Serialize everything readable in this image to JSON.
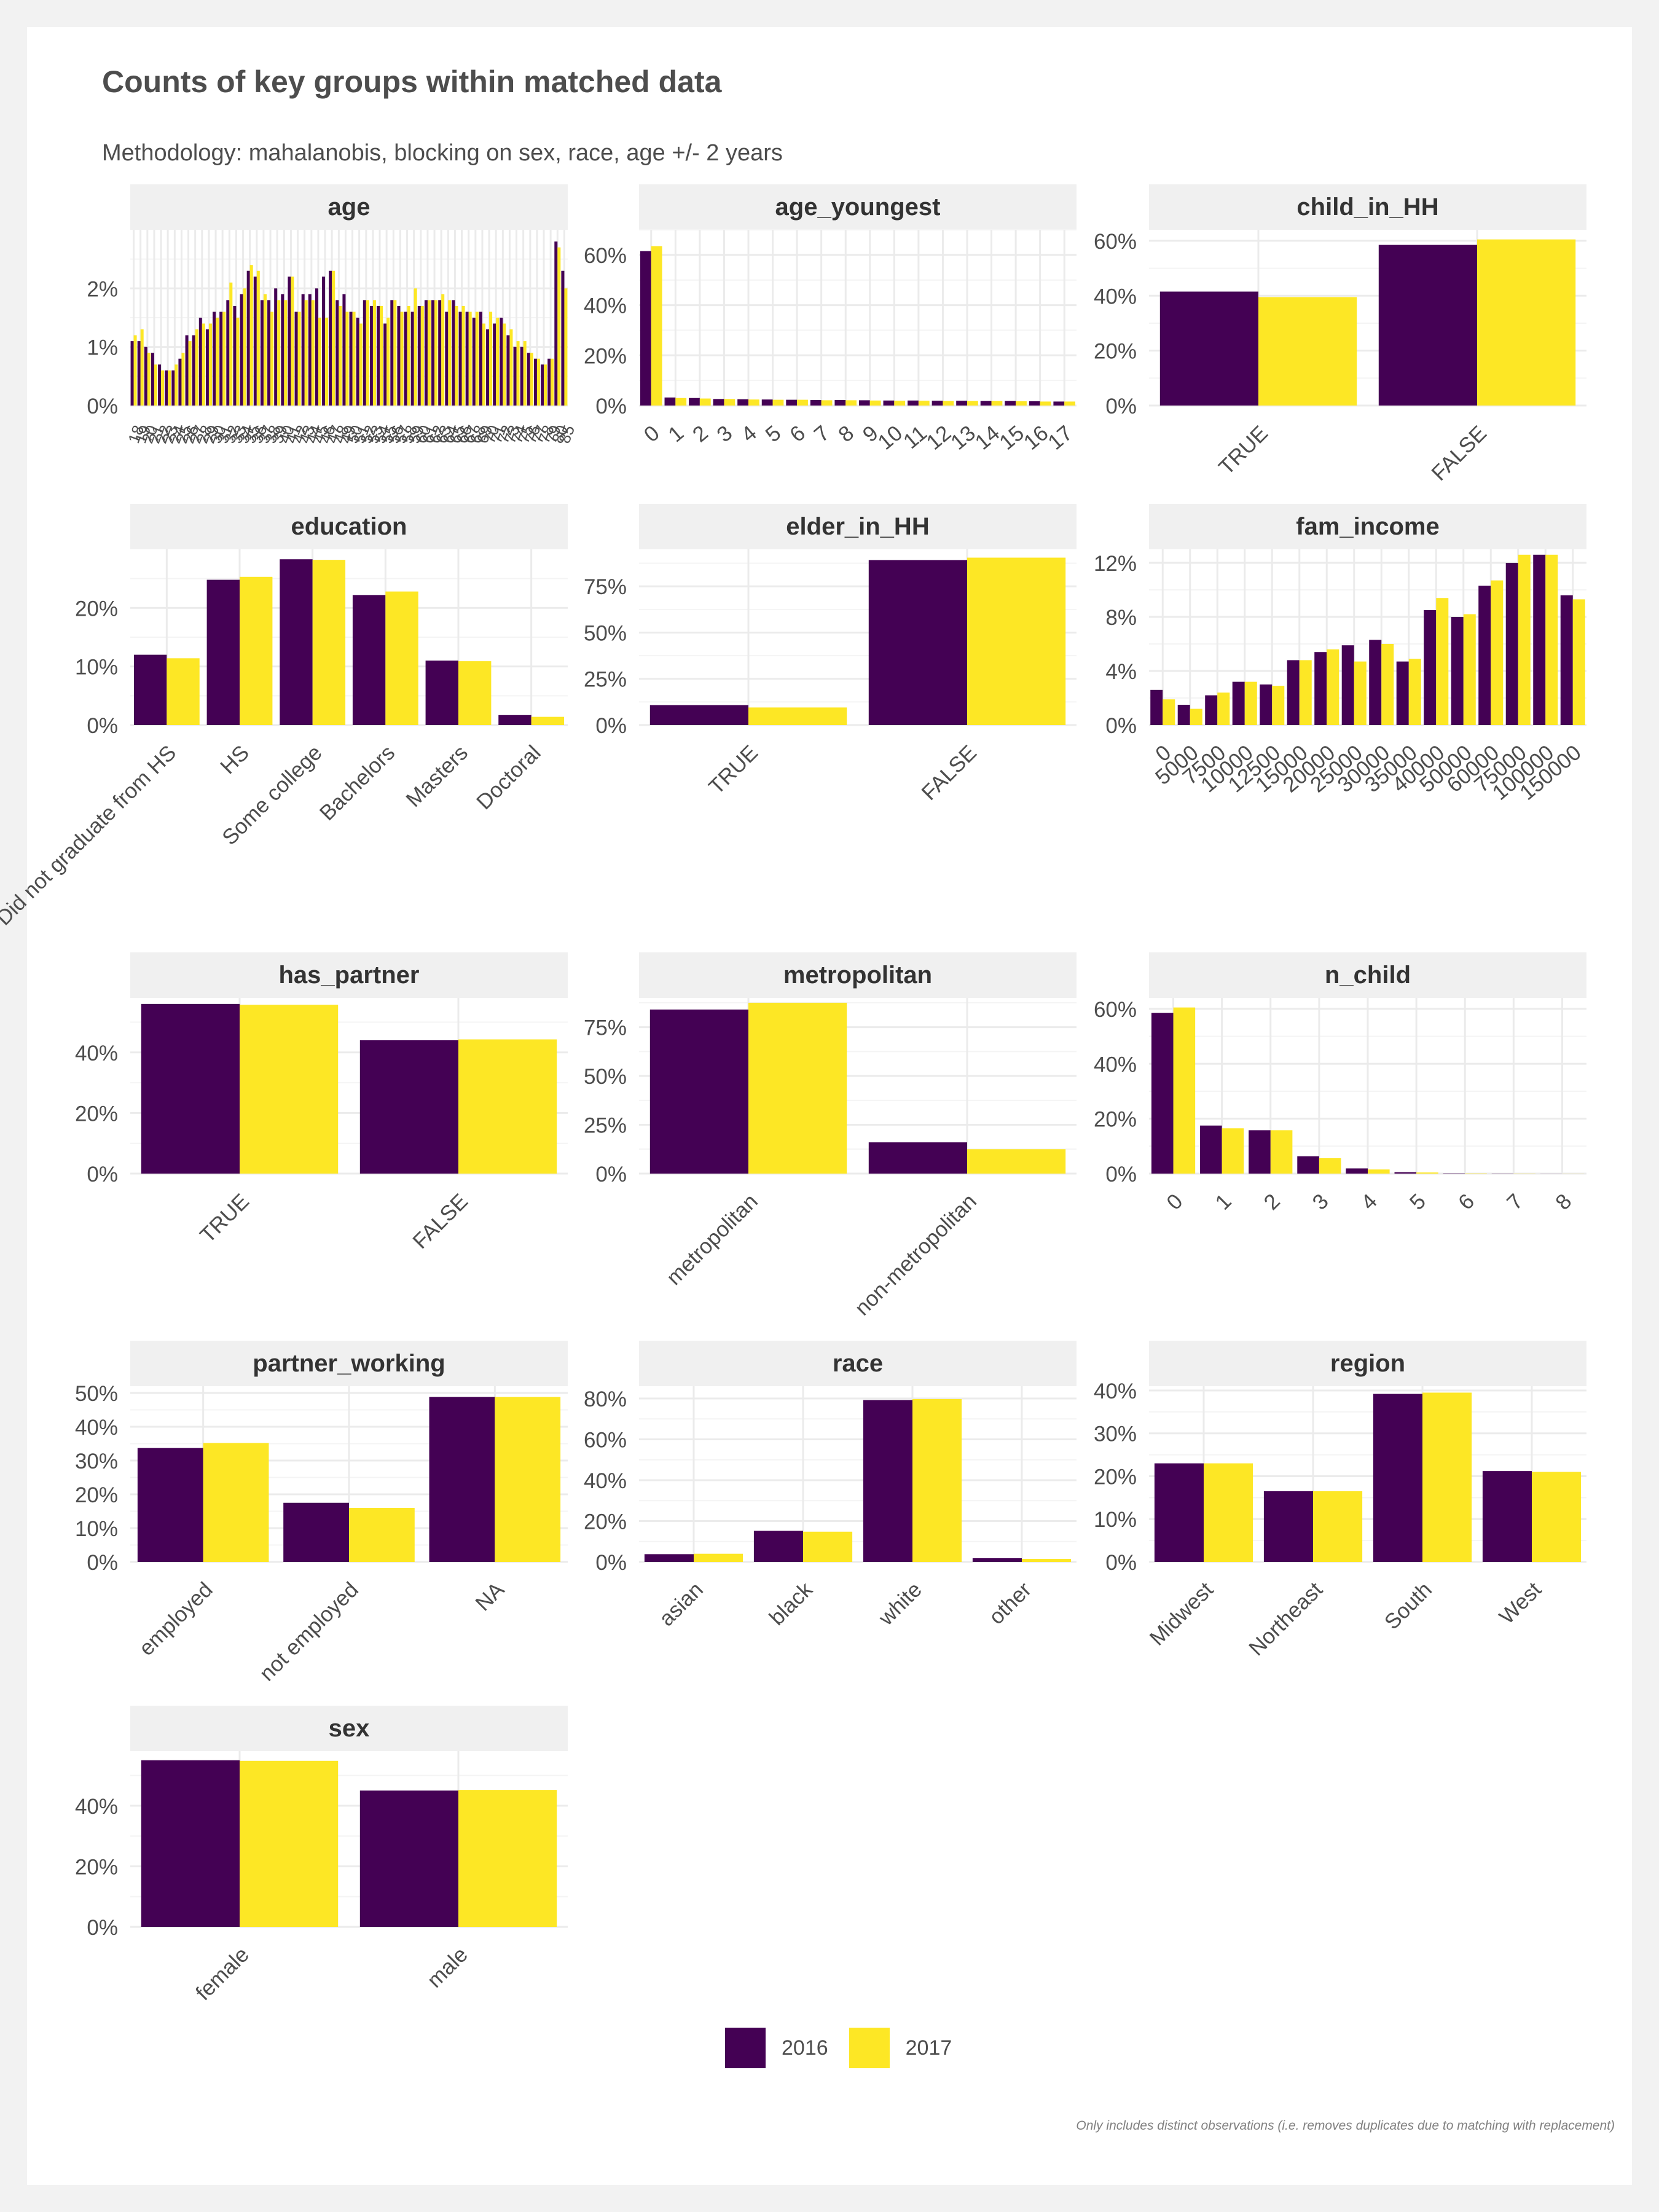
{
  "title": "Counts of key groups within matched data",
  "subtitle": "Methodology: mahalanobis, blocking on sex, race, age +/- 2 years",
  "caption": "Only includes distinct observations (i.e. removes duplicates due to matching with replacement)",
  "legend": [
    {
      "label": "2016",
      "color": "#440154"
    },
    {
      "label": "2017",
      "color": "#fde725"
    }
  ],
  "chart_data": [
    {
      "type": "bar",
      "title": "age",
      "categories": [
        "18",
        "19",
        "20",
        "21",
        "22",
        "23",
        "24",
        "25",
        "26",
        "27",
        "28",
        "29",
        "30",
        "31",
        "32",
        "33",
        "34",
        "35",
        "36",
        "37",
        "38",
        "39",
        "40",
        "41",
        "42",
        "43",
        "44",
        "45",
        "46",
        "47",
        "48",
        "49",
        "50",
        "51",
        "52",
        "53",
        "54",
        "55",
        "56",
        "57",
        "58",
        "59",
        "60",
        "61",
        "62",
        "63",
        "64",
        "65",
        "66",
        "67",
        "68",
        "69",
        "70",
        "71",
        "72",
        "73",
        "74",
        "75",
        "76",
        "77",
        "78",
        "79",
        "80",
        "85"
      ],
      "tick_labels_unreadable": true,
      "ylim": [
        0,
        3
      ],
      "yticks": [
        0,
        1,
        2
      ],
      "ytick_labels": [
        "0%",
        "1%",
        "2%"
      ],
      "series": [
        {
          "name": "2016",
          "values": [
            1.1,
            1.1,
            1.0,
            0.9,
            0.7,
            0.6,
            0.6,
            0.8,
            1.2,
            1.2,
            1.5,
            1.3,
            1.6,
            1.6,
            1.8,
            1.7,
            1.9,
            2.3,
            2.2,
            1.8,
            1.8,
            2.0,
            1.9,
            2.2,
            1.6,
            1.9,
            1.9,
            2.0,
            2.2,
            2.3,
            1.8,
            1.9,
            1.6,
            1.5,
            1.8,
            1.7,
            1.7,
            1.4,
            1.8,
            1.7,
            1.6,
            1.6,
            1.7,
            1.8,
            1.8,
            1.8,
            1.6,
            1.8,
            1.6,
            1.6,
            1.5,
            1.6,
            1.3,
            1.4,
            1.5,
            1.2,
            1.0,
            1.0,
            0.9,
            0.8,
            0.7,
            0.8,
            2.8,
            2.3
          ]
        },
        {
          "name": "2017",
          "values": [
            1.2,
            1.3,
            0.9,
            0.7,
            0.6,
            0.6,
            0.7,
            0.9,
            1.1,
            1.3,
            1.4,
            1.4,
            1.5,
            1.6,
            2.1,
            1.5,
            2.0,
            2.4,
            2.3,
            1.9,
            1.6,
            1.8,
            1.8,
            2.2,
            1.6,
            1.8,
            1.8,
            1.5,
            1.5,
            2.3,
            1.7,
            1.6,
            1.6,
            1.4,
            1.8,
            1.8,
            1.7,
            1.5,
            1.8,
            1.6,
            1.7,
            2.0,
            1.7,
            1.8,
            1.8,
            1.9,
            1.8,
            1.7,
            1.7,
            1.6,
            1.6,
            1.4,
            1.6,
            1.5,
            1.4,
            1.3,
            1.1,
            1.1,
            0.9,
            0.8,
            0.7,
            0.8,
            2.7,
            2.0
          ]
        }
      ]
    },
    {
      "type": "bar",
      "title": "age_youngest",
      "categories": [
        "0",
        "1",
        "2",
        "3",
        "4",
        "5",
        "6",
        "7",
        "8",
        "9",
        "10",
        "11",
        "12",
        "13",
        "14",
        "15",
        "16",
        "17"
      ],
      "ylim": [
        0,
        70
      ],
      "yticks": [
        0,
        20,
        40,
        60
      ],
      "ytick_labels": [
        "0%",
        "20%",
        "40%",
        "60%"
      ],
      "series": [
        {
          "name": "2016",
          "values": [
            61.5,
            3.2,
            3.0,
            2.6,
            2.5,
            2.4,
            2.3,
            2.2,
            2.2,
            2.1,
            2.0,
            2.0,
            1.9,
            1.9,
            1.8,
            1.8,
            1.7,
            1.6
          ]
        },
        {
          "name": "2017",
          "values": [
            63.5,
            3.0,
            2.8,
            2.6,
            2.4,
            2.3,
            2.3,
            2.1,
            2.1,
            2.0,
            1.9,
            1.9,
            1.8,
            1.8,
            1.8,
            1.7,
            1.6,
            1.6
          ]
        }
      ]
    },
    {
      "type": "bar",
      "title": "child_in_HH",
      "categories": [
        "TRUE",
        "FALSE"
      ],
      "ylim": [
        0,
        64
      ],
      "yticks": [
        0,
        20,
        40,
        60
      ],
      "ytick_labels": [
        "0%",
        "20%",
        "40%",
        "60%"
      ],
      "series": [
        {
          "name": "2016",
          "values": [
            41.5,
            58.5
          ]
        },
        {
          "name": "2017",
          "values": [
            39.5,
            60.5
          ]
        }
      ]
    },
    {
      "type": "bar",
      "title": "education",
      "categories": [
        "Did not graduate from HS",
        "HS",
        "Some college",
        "Bachelors",
        "Masters",
        "Doctoral"
      ],
      "ylim": [
        0,
        30
      ],
      "yticks": [
        0,
        10,
        20
      ],
      "ytick_labels": [
        "0%",
        "10%",
        "20%"
      ],
      "series": [
        {
          "name": "2016",
          "values": [
            12.0,
            24.8,
            28.3,
            22.2,
            11.0,
            1.7
          ]
        },
        {
          "name": "2017",
          "values": [
            11.4,
            25.3,
            28.2,
            22.8,
            10.9,
            1.4
          ]
        }
      ]
    },
    {
      "type": "bar",
      "title": "elder_in_HH",
      "categories": [
        "TRUE",
        "FALSE"
      ],
      "ylim": [
        0,
        95
      ],
      "yticks": [
        0,
        25,
        50,
        75
      ],
      "ytick_labels": [
        "0%",
        "25%",
        "50%",
        "75%"
      ],
      "series": [
        {
          "name": "2016",
          "values": [
            10.8,
            89.2
          ]
        },
        {
          "name": "2017",
          "values": [
            9.5,
            90.5
          ]
        }
      ]
    },
    {
      "type": "bar",
      "title": "fam_income",
      "categories": [
        "0",
        "5000",
        "7500",
        "10000",
        "12500",
        "15000",
        "20000",
        "25000",
        "30000",
        "35000",
        "40000",
        "50000",
        "60000",
        "75000",
        "100000",
        "150000"
      ],
      "ylim": [
        0,
        13
      ],
      "yticks": [
        0,
        4,
        8,
        12
      ],
      "ytick_labels": [
        "0%",
        "4%",
        "8%",
        "12%"
      ],
      "series": [
        {
          "name": "2016",
          "values": [
            2.6,
            1.5,
            2.2,
            3.2,
            3.0,
            4.8,
            5.4,
            5.9,
            6.3,
            4.7,
            8.5,
            8.0,
            10.3,
            12.0,
            12.6,
            9.6
          ]
        },
        {
          "name": "2017",
          "values": [
            1.9,
            1.2,
            2.4,
            3.2,
            2.9,
            4.8,
            5.6,
            4.7,
            6.0,
            4.9,
            9.4,
            8.2,
            10.7,
            12.6,
            12.6,
            9.3
          ]
        }
      ]
    },
    {
      "type": "bar",
      "title": "has_partner",
      "categories": [
        "TRUE",
        "FALSE"
      ],
      "ylim": [
        0,
        58
      ],
      "yticks": [
        0,
        20,
        40
      ],
      "ytick_labels": [
        "0%",
        "20%",
        "40%"
      ],
      "series": [
        {
          "name": "2016",
          "values": [
            56.0,
            44.0
          ]
        },
        {
          "name": "2017",
          "values": [
            55.7,
            44.3
          ]
        }
      ]
    },
    {
      "type": "bar",
      "title": "metropolitan",
      "categories": [
        "metropolitan",
        "non-metropolitan"
      ],
      "ylim": [
        0,
        90
      ],
      "yticks": [
        0,
        25,
        50,
        75
      ],
      "ytick_labels": [
        "0%",
        "25%",
        "50%",
        "75%"
      ],
      "series": [
        {
          "name": "2016",
          "values": [
            84.0,
            16.0
          ]
        },
        {
          "name": "2017",
          "values": [
            87.5,
            12.5
          ]
        }
      ]
    },
    {
      "type": "bar",
      "title": "n_child",
      "categories": [
        "0",
        "1",
        "2",
        "3",
        "4",
        "5",
        "6",
        "7",
        "8"
      ],
      "ylim": [
        0,
        64
      ],
      "yticks": [
        0,
        20,
        40,
        60
      ],
      "ytick_labels": [
        "0%",
        "20%",
        "40%",
        "60%"
      ],
      "series": [
        {
          "name": "2016",
          "values": [
            58.5,
            17.5,
            15.8,
            6.3,
            1.9,
            0.5,
            0.1,
            0.05,
            0.02
          ]
        },
        {
          "name": "2017",
          "values": [
            60.5,
            16.5,
            15.8,
            5.6,
            1.5,
            0.4,
            0.1,
            0.05,
            0.02
          ]
        }
      ]
    },
    {
      "type": "bar",
      "title": "partner_working",
      "categories": [
        "employed",
        "not employed",
        "NA"
      ],
      "ylim": [
        0,
        52
      ],
      "yticks": [
        0,
        10,
        20,
        30,
        40,
        50
      ],
      "ytick_labels": [
        "0%",
        "10%",
        "20%",
        "30%",
        "40%",
        "50%"
      ],
      "series": [
        {
          "name": "2016",
          "values": [
            33.7,
            17.5,
            48.8
          ]
        },
        {
          "name": "2017",
          "values": [
            35.2,
            16.0,
            48.8
          ]
        }
      ]
    },
    {
      "type": "bar",
      "title": "race",
      "categories": [
        "asian",
        "black",
        "white",
        "other"
      ],
      "ylim": [
        0,
        86
      ],
      "yticks": [
        0,
        20,
        40,
        60,
        80
      ],
      "ytick_labels": [
        "0%",
        "20%",
        "40%",
        "60%",
        "80%"
      ],
      "series": [
        {
          "name": "2016",
          "values": [
            3.8,
            15.2,
            79.2,
            1.8
          ]
        },
        {
          "name": "2017",
          "values": [
            4.0,
            14.8,
            79.7,
            1.5
          ]
        }
      ]
    },
    {
      "type": "bar",
      "title": "region",
      "categories": [
        "Midwest",
        "Northeast",
        "South",
        "West"
      ],
      "ylim": [
        0,
        41
      ],
      "yticks": [
        0,
        10,
        20,
        30,
        40
      ],
      "ytick_labels": [
        "0%",
        "10%",
        "20%",
        "30%",
        "40%"
      ],
      "series": [
        {
          "name": "2016",
          "values": [
            23.0,
            16.5,
            39.2,
            21.2
          ]
        },
        {
          "name": "2017",
          "values": [
            23.0,
            16.5,
            39.5,
            21.0
          ]
        }
      ]
    },
    {
      "type": "bar",
      "title": "sex",
      "categories": [
        "female",
        "male"
      ],
      "ylim": [
        0,
        58
      ],
      "yticks": [
        0,
        20,
        40
      ],
      "ytick_labels": [
        "0%",
        "20%",
        "40%"
      ],
      "series": [
        {
          "name": "2016",
          "values": [
            55.0,
            45.0
          ]
        },
        {
          "name": "2017",
          "values": [
            54.8,
            45.2
          ]
        }
      ]
    }
  ]
}
